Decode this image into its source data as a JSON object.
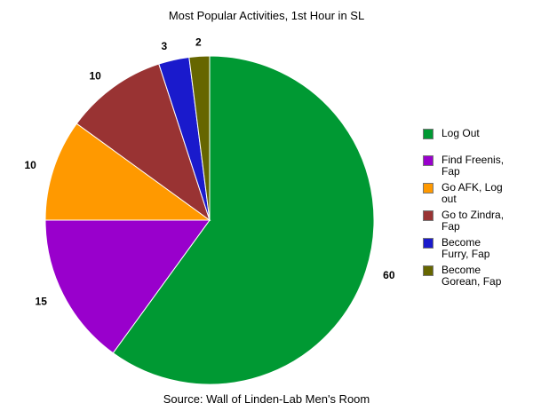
{
  "chart_data": {
    "type": "pie",
    "title": "Most Popular Activities, 1st Hour in SL",
    "caption": "Source: Wall of Linden-Lab Men's Room",
    "legend_position": "right",
    "slices": [
      {
        "label": "Log Out",
        "legend_text": "Log Out",
        "value": 60,
        "color": "#009933"
      },
      {
        "label": "Find Freenis, Fap",
        "legend_text": "Find Freenis,\nFap",
        "value": 15,
        "color": "#9900CC"
      },
      {
        "label": "Go AFK, Log out",
        "legend_text": "Go AFK, Log\nout",
        "value": 10,
        "color": "#FF9900"
      },
      {
        "label": "Go to Zindra, Fap",
        "legend_text": "Go to Zindra,\nFap",
        "value": 10,
        "color": "#993333"
      },
      {
        "label": "Become Furry, Fap",
        "legend_text": "Become\nFurry, Fap",
        "value": 3,
        "color": "#1A1ACC"
      },
      {
        "label": "Become Gorean, Fap",
        "legend_text": "Become\nGorean, Fap",
        "value": 2,
        "color": "#666600"
      }
    ]
  }
}
